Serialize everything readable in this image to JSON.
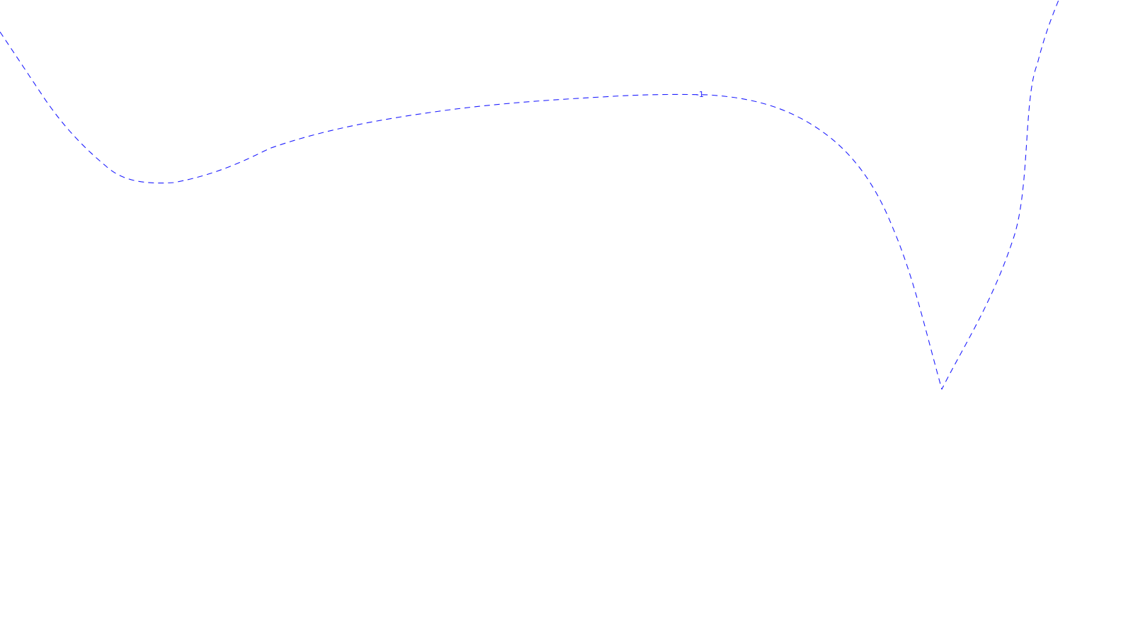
{
  "map": {
    "contour": {
      "label": "-1",
      "color": "#1f1fff",
      "style": "dashed"
    }
  }
}
